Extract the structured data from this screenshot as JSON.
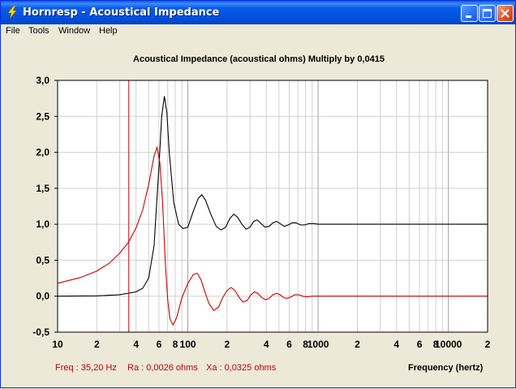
{
  "window": {
    "title": "Hornresp - Acoustical Impedance",
    "icon": "lightning-icon",
    "controls": [
      "minimize-icon",
      "maximize-icon",
      "close-icon"
    ]
  },
  "menu": {
    "items": [
      "File",
      "Tools",
      "Window",
      "Help"
    ]
  },
  "status": {
    "freq": "Freq : 35,20 Hz",
    "ra": "Ra : 0,0026 ohms",
    "xa": "Xa : 0,0325 ohms"
  },
  "chart_data": {
    "type": "line",
    "title": "Acoustical Impedance (acoustical ohms)   Multiply by 0,0415",
    "xlabel": "Frequency (hertz)",
    "ylabel": "",
    "xscale": "log",
    "xlim": [
      10,
      20000
    ],
    "ylim": [
      -0.5,
      3.0
    ],
    "yticks": [
      "3,0",
      "2,5",
      "2,0",
      "1,5",
      "1,0",
      "0,5",
      "0,0",
      "-0,5"
    ],
    "xtick_labels": [
      {
        "v": 10,
        "t": "10"
      },
      {
        "v": 20,
        "t": "2"
      },
      {
        "v": 40,
        "t": "4"
      },
      {
        "v": 60,
        "t": "6"
      },
      {
        "v": 80,
        "t": "8"
      },
      {
        "v": 100,
        "t": "100"
      },
      {
        "v": 200,
        "t": "2"
      },
      {
        "v": 400,
        "t": "4"
      },
      {
        "v": 600,
        "t": "6"
      },
      {
        "v": 800,
        "t": "8"
      },
      {
        "v": 1000,
        "t": "1000"
      },
      {
        "v": 2000,
        "t": "2"
      },
      {
        "v": 4000,
        "t": "4"
      },
      {
        "v": 6000,
        "t": "6"
      },
      {
        "v": 8000,
        "t": "8"
      },
      {
        "v": 10000,
        "t": "10000"
      },
      {
        "v": 20000,
        "t": "2"
      }
    ],
    "marker_freq": 35.2,
    "grid": true,
    "colors": {
      "resistance": "#000000",
      "reactance": "#cc0000",
      "marker": "#cc0000",
      "grid": "#d0d0d0",
      "gridMajor": "#a0a0a0"
    },
    "series": [
      {
        "key": "resistance",
        "color": "#000000",
        "points": [
          [
            10,
            0.0
          ],
          [
            20,
            0.005
          ],
          [
            30,
            0.02
          ],
          [
            40,
            0.06
          ],
          [
            45,
            0.11
          ],
          [
            50,
            0.25
          ],
          [
            55,
            0.7
          ],
          [
            60,
            1.8
          ],
          [
            63,
            2.5
          ],
          [
            66,
            2.78
          ],
          [
            69,
            2.55
          ],
          [
            72,
            2.0
          ],
          [
            78,
            1.3
          ],
          [
            85,
            1.0
          ],
          [
            92,
            0.94
          ],
          [
            100,
            0.96
          ],
          [
            110,
            1.18
          ],
          [
            120,
            1.36
          ],
          [
            128,
            1.41
          ],
          [
            137,
            1.33
          ],
          [
            150,
            1.14
          ],
          [
            165,
            0.97
          ],
          [
            180,
            0.92
          ],
          [
            195,
            0.96
          ],
          [
            210,
            1.08
          ],
          [
            225,
            1.14
          ],
          [
            240,
            1.1
          ],
          [
            260,
            1.0
          ],
          [
            280,
            0.93
          ],
          [
            300,
            0.96
          ],
          [
            320,
            1.04
          ],
          [
            340,
            1.06
          ],
          [
            360,
            1.02
          ],
          [
            390,
            0.96
          ],
          [
            420,
            0.97
          ],
          [
            450,
            1.02
          ],
          [
            480,
            1.04
          ],
          [
            510,
            1.01
          ],
          [
            550,
            0.97
          ],
          [
            590,
            0.99
          ],
          [
            630,
            1.02
          ],
          [
            680,
            1.02
          ],
          [
            730,
            0.99
          ],
          [
            790,
            0.99
          ],
          [
            850,
            1.01
          ],
          [
            920,
            1.01
          ],
          [
            1000,
            1.0
          ],
          [
            1200,
            1.0
          ],
          [
            1500,
            1.0
          ],
          [
            3000,
            1.0
          ],
          [
            20000,
            1.0
          ]
        ]
      },
      {
        "key": "reactance",
        "color": "#cc0000",
        "points": [
          [
            10,
            0.18
          ],
          [
            15,
            0.26
          ],
          [
            20,
            0.35
          ],
          [
            25,
            0.46
          ],
          [
            30,
            0.6
          ],
          [
            35,
            0.75
          ],
          [
            40,
            0.95
          ],
          [
            45,
            1.2
          ],
          [
            50,
            1.55
          ],
          [
            55,
            1.95
          ],
          [
            58,
            2.07
          ],
          [
            61,
            1.85
          ],
          [
            64,
            1.3
          ],
          [
            67,
            0.5
          ],
          [
            70,
            -0.05
          ],
          [
            73,
            -0.32
          ],
          [
            77,
            -0.4
          ],
          [
            82,
            -0.3
          ],
          [
            90,
            -0.02
          ],
          [
            100,
            0.18
          ],
          [
            110,
            0.3
          ],
          [
            118,
            0.32
          ],
          [
            126,
            0.23
          ],
          [
            135,
            0.06
          ],
          [
            145,
            -0.1
          ],
          [
            158,
            -0.2
          ],
          [
            172,
            -0.15
          ],
          [
            185,
            -0.02
          ],
          [
            200,
            0.08
          ],
          [
            215,
            0.12
          ],
          [
            230,
            0.08
          ],
          [
            248,
            -0.02
          ],
          [
            265,
            -0.08
          ],
          [
            285,
            -0.06
          ],
          [
            305,
            0.02
          ],
          [
            325,
            0.06
          ],
          [
            345,
            0.04
          ],
          [
            370,
            -0.02
          ],
          [
            395,
            -0.05
          ],
          [
            420,
            -0.03
          ],
          [
            450,
            0.02
          ],
          [
            480,
            0.04
          ],
          [
            510,
            0.02
          ],
          [
            545,
            -0.02
          ],
          [
            580,
            -0.03
          ],
          [
            620,
            -0.01
          ],
          [
            660,
            0.02
          ],
          [
            710,
            0.02
          ],
          [
            760,
            0.0
          ],
          [
            820,
            -0.01
          ],
          [
            900,
            0.0
          ],
          [
            1000,
            0.0
          ],
          [
            1500,
            0.0
          ],
          [
            3000,
            0.0
          ],
          [
            20000,
            0.0
          ]
        ]
      }
    ]
  }
}
